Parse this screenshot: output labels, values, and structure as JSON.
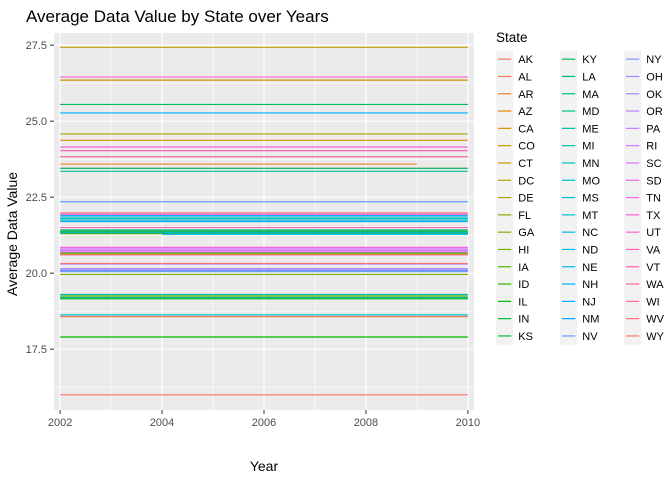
{
  "chart_data": {
    "type": "line",
    "title": "Average Data Value by State over Years",
    "xlabel": "Year",
    "ylabel": "Average Data Value",
    "xlim": [
      2001.88,
      2010.12
    ],
    "ylim": [
      15.5,
      27.9
    ],
    "x_ticks": [
      "2002",
      "2004",
      "2006",
      "2008",
      "2010"
    ],
    "x_tick_values": [
      2002,
      2004,
      2006,
      2008,
      2010
    ],
    "y_ticks": [
      "17.5",
      "20.0",
      "22.5",
      "25.0",
      "27.5"
    ],
    "y_tick_values": [
      17.5,
      20.0,
      22.5,
      25.0,
      27.5
    ],
    "grid": true,
    "legend_title": "State",
    "legend_position": "right",
    "background": "#ebebeb",
    "series": [
      {
        "name": "AK",
        "color": "#F8766D",
        "x_start": 2002,
        "x_end": 2010,
        "value": 16.0
      },
      {
        "name": "AL",
        "color": "#F27D52",
        "x_start": 2002,
        "x_end": 2010,
        "value": 18.57
      },
      {
        "name": "AR",
        "color": "#EA8331",
        "x_start": 2002,
        "x_end": 2009,
        "value": 23.59
      },
      {
        "name": "AZ",
        "color": "#E18A00",
        "x_start": 2002,
        "x_end": 2010,
        "value": 23.45
      },
      {
        "name": "CA",
        "color": "#D89000",
        "x_start": 2002,
        "x_end": 2010,
        "value": 24.37
      },
      {
        "name": "CO",
        "color": "#CD9600",
        "x_start": 2002,
        "x_end": 2010,
        "value": 26.35
      },
      {
        "name": "CT",
        "color": "#C19C00",
        "x_start": 2002,
        "x_end": 2010,
        "value": 27.43
      },
      {
        "name": "DC",
        "color": "#B3A000",
        "x_start": 2002,
        "x_end": 2010,
        "value": 24.58
      },
      {
        "name": "DE",
        "color": "#A5A400",
        "x_start": 2002,
        "x_end": 2010,
        "value": 21.3
      },
      {
        "name": "FL",
        "color": "#95A900",
        "x_start": 2002,
        "x_end": 2010,
        "value": 20.62
      },
      {
        "name": "GA",
        "color": "#84AD00",
        "x_start": 2002,
        "x_end": 2010,
        "value": 19.96
      },
      {
        "name": "HI",
        "color": "#6FB000",
        "x_start": 2002,
        "x_end": 2010,
        "value": 19.25
      },
      {
        "name": "IA",
        "color": "#56B200",
        "x_start": 2002,
        "x_end": 2010,
        "value": 20.66
      },
      {
        "name": "ID",
        "color": "#30B400",
        "x_start": 2002,
        "x_end": 2010,
        "value": 21.38
      },
      {
        "name": "IL",
        "color": "#00B600",
        "x_start": 2002,
        "x_end": 2010,
        "value": 17.9
      },
      {
        "name": "IN",
        "color": "#00B832",
        "x_start": 2002,
        "x_end": 2010,
        "value": 19.16
      },
      {
        "name": "KS",
        "color": "#00B94A",
        "x_start": 2002,
        "x_end": 2010,
        "value": 21.32
      },
      {
        "name": "KY",
        "color": "#00BA5D",
        "x_start": 2002,
        "x_end": 2010,
        "value": 25.55
      },
      {
        "name": "LA",
        "color": "#00BB6E",
        "x_start": 2002,
        "x_end": 2010,
        "value": 21.42
      },
      {
        "name": "MA",
        "color": "#00BC7E",
        "x_start": 2002,
        "x_end": 2010,
        "value": 23.45
      },
      {
        "name": "MD",
        "color": "#00BD8C",
        "x_start": 2002,
        "x_end": 2010,
        "value": 19.2
      },
      {
        "name": "ME",
        "color": "#00BE9A",
        "x_start": 2002,
        "x_end": 2010,
        "value": 23.35
      },
      {
        "name": "MI",
        "color": "#00BFA7",
        "x_start": 2002,
        "x_end": 2010,
        "value": 19.3
      },
      {
        "name": "MN",
        "color": "#00BFB3",
        "x_start": 2002,
        "x_end": 2010,
        "value": 21.8
      },
      {
        "name": "MO",
        "color": "#00BFBF",
        "x_start": 2002,
        "x_end": 2010,
        "value": 21.75
      },
      {
        "name": "MS",
        "color": "#00BECA",
        "x_start": 2002,
        "x_end": 2010,
        "value": 18.63
      },
      {
        "name": "MT",
        "color": "#00BCD5",
        "x_start": 2002,
        "x_end": 2010,
        "value": 21.9
      },
      {
        "name": "NC",
        "color": "#00BADF",
        "x_start": 2002,
        "x_end": 2010,
        "value": 21.35
      },
      {
        "name": "ND",
        "color": "#00B7E9",
        "x_start": 2004,
        "x_end": 2010,
        "value": 21.28
      },
      {
        "name": "NE",
        "color": "#00B4F1",
        "x_start": 2002,
        "x_end": 2010,
        "value": 21.85
      },
      {
        "name": "NH",
        "color": "#00AFF9",
        "x_start": 2002,
        "x_end": 2010,
        "value": 25.27
      },
      {
        "name": "NJ",
        "color": "#00AAFE",
        "x_start": 2002,
        "x_end": 2010,
        "value": 21.7
      },
      {
        "name": "NM",
        "color": "#00A4FF",
        "x_start": 2002,
        "x_end": 2010,
        "value": 20.08
      },
      {
        "name": "NV",
        "color": "#619CFF",
        "x_start": 2002,
        "x_end": 2010,
        "value": 22.35
      },
      {
        "name": "NY",
        "color": "#7C96FF",
        "x_start": 2002,
        "x_end": 2010,
        "value": 20.05
      },
      {
        "name": "OH",
        "color": "#9590FF",
        "x_start": 2002,
        "x_end": 2010,
        "value": 20.1
      },
      {
        "name": "OK",
        "color": "#A989FF",
        "x_start": 2002,
        "x_end": 2010,
        "value": 20.15
      },
      {
        "name": "OR",
        "color": "#BA82FF",
        "x_start": 2002,
        "x_end": 2010,
        "value": 20.3
      },
      {
        "name": "PA",
        "color": "#C97CFF",
        "x_start": 2002,
        "x_end": 2010,
        "value": 20.75
      },
      {
        "name": "RI",
        "color": "#D776FF",
        "x_start": 2002,
        "x_end": 2010,
        "value": 20.8
      },
      {
        "name": "SC",
        "color": "#E270F7",
        "x_start": 2002,
        "x_end": 2010,
        "value": 21.93
      },
      {
        "name": "SD",
        "color": "#EC69EE",
        "x_start": 2002,
        "x_end": 2010,
        "value": 20.7
      },
      {
        "name": "TN",
        "color": "#F464E3",
        "x_start": 2002,
        "x_end": 2010,
        "value": 20.85
      },
      {
        "name": "TX",
        "color": "#FA62D8",
        "x_start": 2002,
        "x_end": 2010,
        "value": 24.15
      },
      {
        "name": "UT",
        "color": "#FF61CB",
        "x_start": 2002,
        "x_end": 2010,
        "value": 26.45
      },
      {
        "name": "VA",
        "color": "#FF62BE",
        "x_start": 2002,
        "x_end": 2010,
        "value": 21.5
      },
      {
        "name": "VT",
        "color": "#FF64B0",
        "x_start": 2002,
        "x_end": 2010,
        "value": 24.03
      },
      {
        "name": "WA",
        "color": "#FF68A1",
        "x_start": 2002,
        "x_end": 2010,
        "value": 23.83
      },
      {
        "name": "WI",
        "color": "#FF6C91",
        "x_start": 2002,
        "x_end": 2010,
        "value": 20.6
      },
      {
        "name": "WV",
        "color": "#FC717F",
        "x_start": 2002,
        "x_end": 2010,
        "value": 21.98
      },
      {
        "name": "WY",
        "color": "#F8766D",
        "x_start": 2002,
        "x_end": 2010,
        "value": 20.32
      }
    ]
  }
}
